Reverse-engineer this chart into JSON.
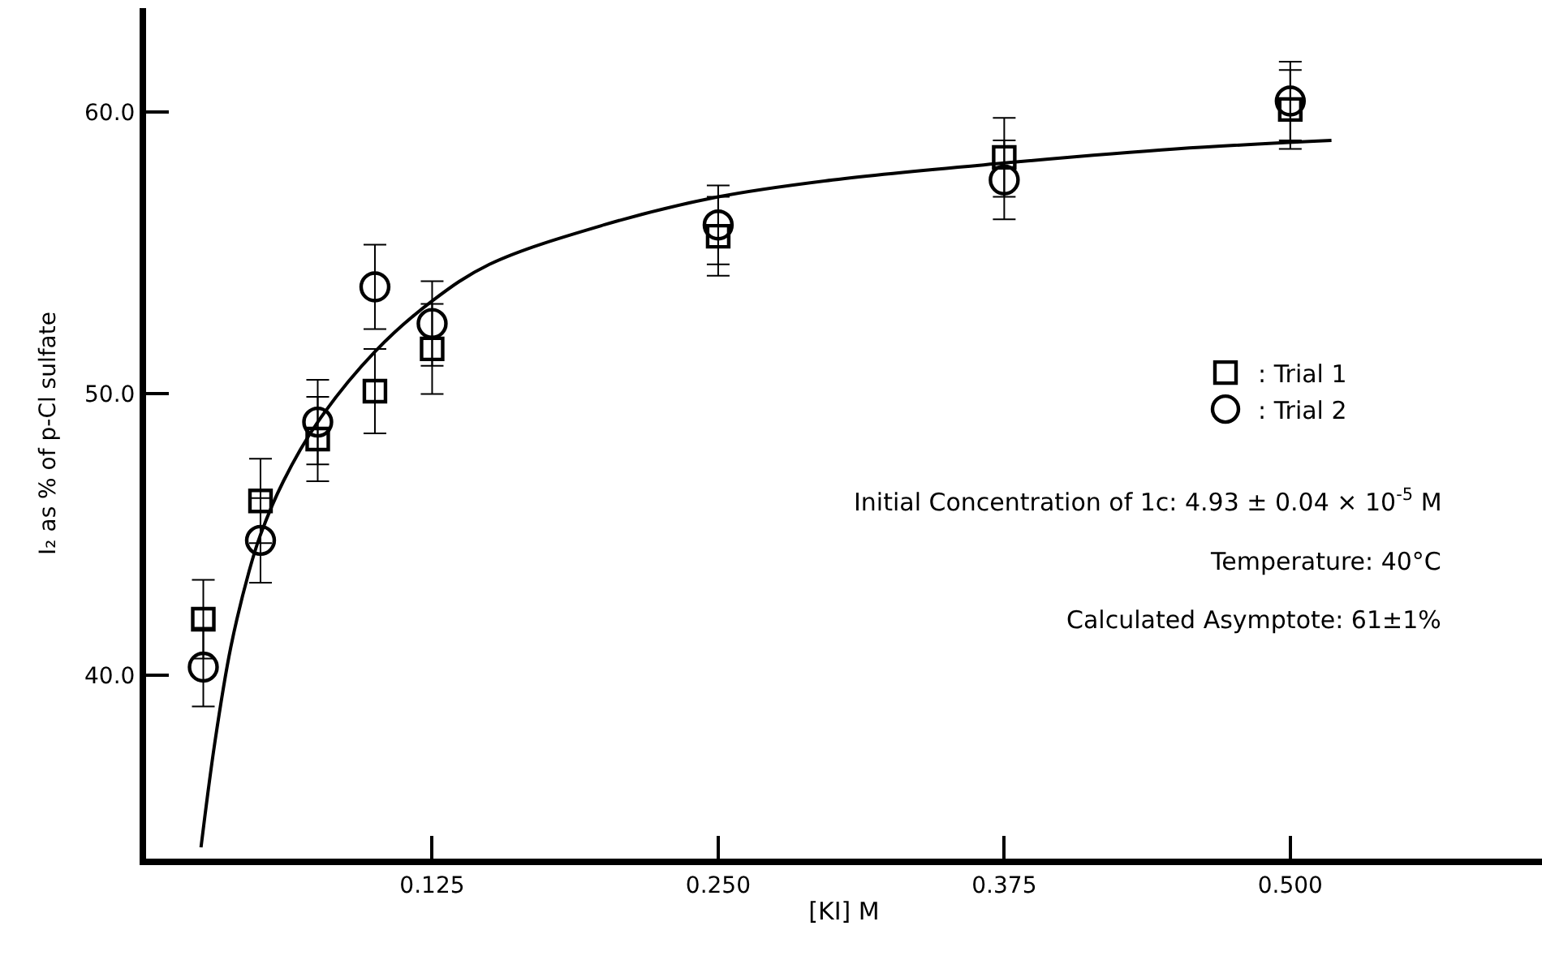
{
  "chart_data": {
    "type": "scatter",
    "xlabel": "[KI] M",
    "ylabel": "I₂ as % of p-Cl sulfate",
    "x": [
      0.025,
      0.05,
      0.075,
      0.1,
      0.125,
      0.25,
      0.375,
      0.5
    ],
    "series": [
      {
        "name": ": Trial 1",
        "color": "#000000",
        "marker": "square",
        "values": [
          42.0,
          46.2,
          48.4,
          50.1,
          51.6,
          55.6,
          58.4,
          60.1
        ],
        "errors": [
          1.4,
          1.5,
          1.5,
          1.5,
          1.6,
          1.4,
          1.4,
          1.4
        ]
      },
      {
        "name": ": Trial 2",
        "color": "#000000",
        "marker": "circle",
        "values": [
          40.3,
          44.8,
          49.0,
          53.8,
          52.5,
          56.0,
          57.6,
          60.4
        ],
        "errors": [
          1.4,
          1.5,
          1.5,
          1.5,
          1.5,
          1.4,
          1.4,
          1.4
        ]
      },
      {
        "type": "line",
        "color": "#000000",
        "marker": "none",
        "x": [
          0.024,
          0.03,
          0.037,
          0.045,
          0.05,
          0.06,
          0.075,
          0.1,
          0.125,
          0.15,
          0.2,
          0.25,
          0.3,
          0.375,
          0.45,
          0.518
        ],
        "values": [
          33.9,
          37.6,
          41.0,
          43.7,
          45.0,
          46.9,
          49.0,
          51.5,
          53.3,
          54.6,
          56.0,
          57.0,
          57.6,
          58.2,
          58.7,
          59.0
        ]
      }
    ],
    "annotations": [
      "Initial Concentration of 1c: 4.93 ± 0.04 × 10$^{-5}$ M",
      "Temperature: 40°C",
      "Calculated Asymptote: 61±1%"
    ],
    "xlim": [
      0,
      0.61
    ],
    "ylim": [
      33.5,
      63.7
    ],
    "xticks": [
      0.125,
      {
        "value": 0.25,
        "label": "0.250"
      },
      0.375,
      {
        "value": 0.5,
        "label": "0.500"
      }
    ],
    "yticks": [
      {
        "value": 40,
        "label": "40.0"
      },
      {
        "value": 50,
        "label": "50.0"
      },
      {
        "value": 60,
        "label": "60.0"
      }
    ],
    "legend": "right"
  }
}
